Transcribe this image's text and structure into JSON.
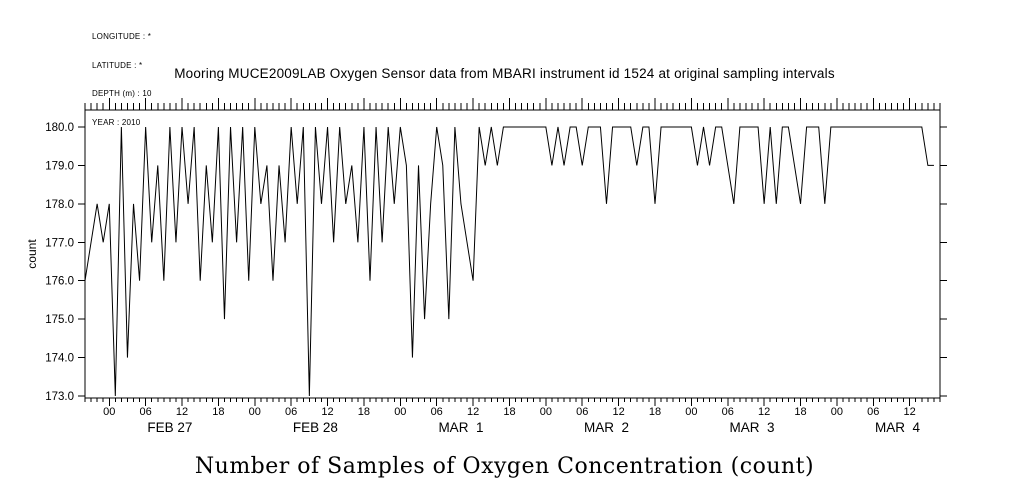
{
  "metadata": {
    "lines": [
      "LONGITUDE : *",
      "LATITUDE : *",
      "DEPTH (m) : 10",
      "YEAR : 2010"
    ]
  },
  "chart_data": {
    "type": "line",
    "title": "Mooring MUCE2009LAB Oxygen Sensor data from MBARI instrument id 1524 at original sampling intervals",
    "xlabel": "Number of Samples of Oxygen Concentration (count)",
    "ylabel": "count",
    "ylim": [
      173,
      180
    ],
    "yticks": [
      173,
      174,
      175,
      176,
      177,
      178,
      179,
      180
    ],
    "ytick_label_format": "one_decimal",
    "grid": false,
    "legend": "none",
    "line_color": "#000000",
    "x_axis": {
      "unit": "hours since start of record (Feb 26 2010 20:00)",
      "total_hours": 141,
      "first_midnight_offset_hours": 4,
      "major_tick_every_hours": 6,
      "minor_tick_every_hours": 1,
      "hour_tick_labels": [
        "00",
        "06",
        "12",
        "18"
      ],
      "days": [
        {
          "label": "FEB 27",
          "start_hour": 4
        },
        {
          "label": "FEB 28",
          "start_hour": 28
        },
        {
          "label": "MAR  1",
          "start_hour": 52
        },
        {
          "label": "MAR  2",
          "start_hour": 76
        },
        {
          "label": "MAR  3",
          "start_hour": 100
        },
        {
          "label": "MAR  4",
          "start_hour": 124
        }
      ]
    },
    "series": [
      {
        "name": "oxygen-sample-count",
        "x_start_hour": 0,
        "x_step_hours": 1,
        "values": [
          176,
          177,
          178,
          177,
          178,
          173,
          180,
          174,
          178,
          176,
          180,
          177,
          179,
          176,
          180,
          177,
          180,
          178,
          180,
          176,
          179,
          177,
          180,
          175,
          180,
          177,
          180,
          176,
          180,
          178,
          179,
          176,
          179,
          177,
          180,
          178,
          180,
          173,
          180,
          178,
          180,
          177,
          180,
          178,
          179,
          177,
          180,
          176,
          180,
          177,
          180,
          178,
          180,
          179,
          174,
          179,
          175,
          178,
          180,
          179,
          175,
          180,
          178,
          177,
          176,
          180,
          179,
          180,
          179,
          180,
          180,
          180,
          180,
          180,
          180,
          180,
          180,
          179,
          180,
          179,
          180,
          180,
          179,
          180,
          180,
          180,
          178,
          180,
          180,
          180,
          180,
          179,
          180,
          180,
          178,
          180,
          180,
          180,
          180,
          180,
          180,
          179,
          180,
          179,
          180,
          180,
          179,
          178,
          180,
          180,
          180,
          180,
          178,
          180,
          178,
          180,
          180,
          179,
          178,
          180,
          180,
          180,
          178,
          180,
          180,
          180,
          180,
          180,
          180,
          180,
          180,
          180,
          180,
          180,
          180,
          180,
          180,
          180,
          180,
          179,
          179
        ]
      }
    ]
  }
}
